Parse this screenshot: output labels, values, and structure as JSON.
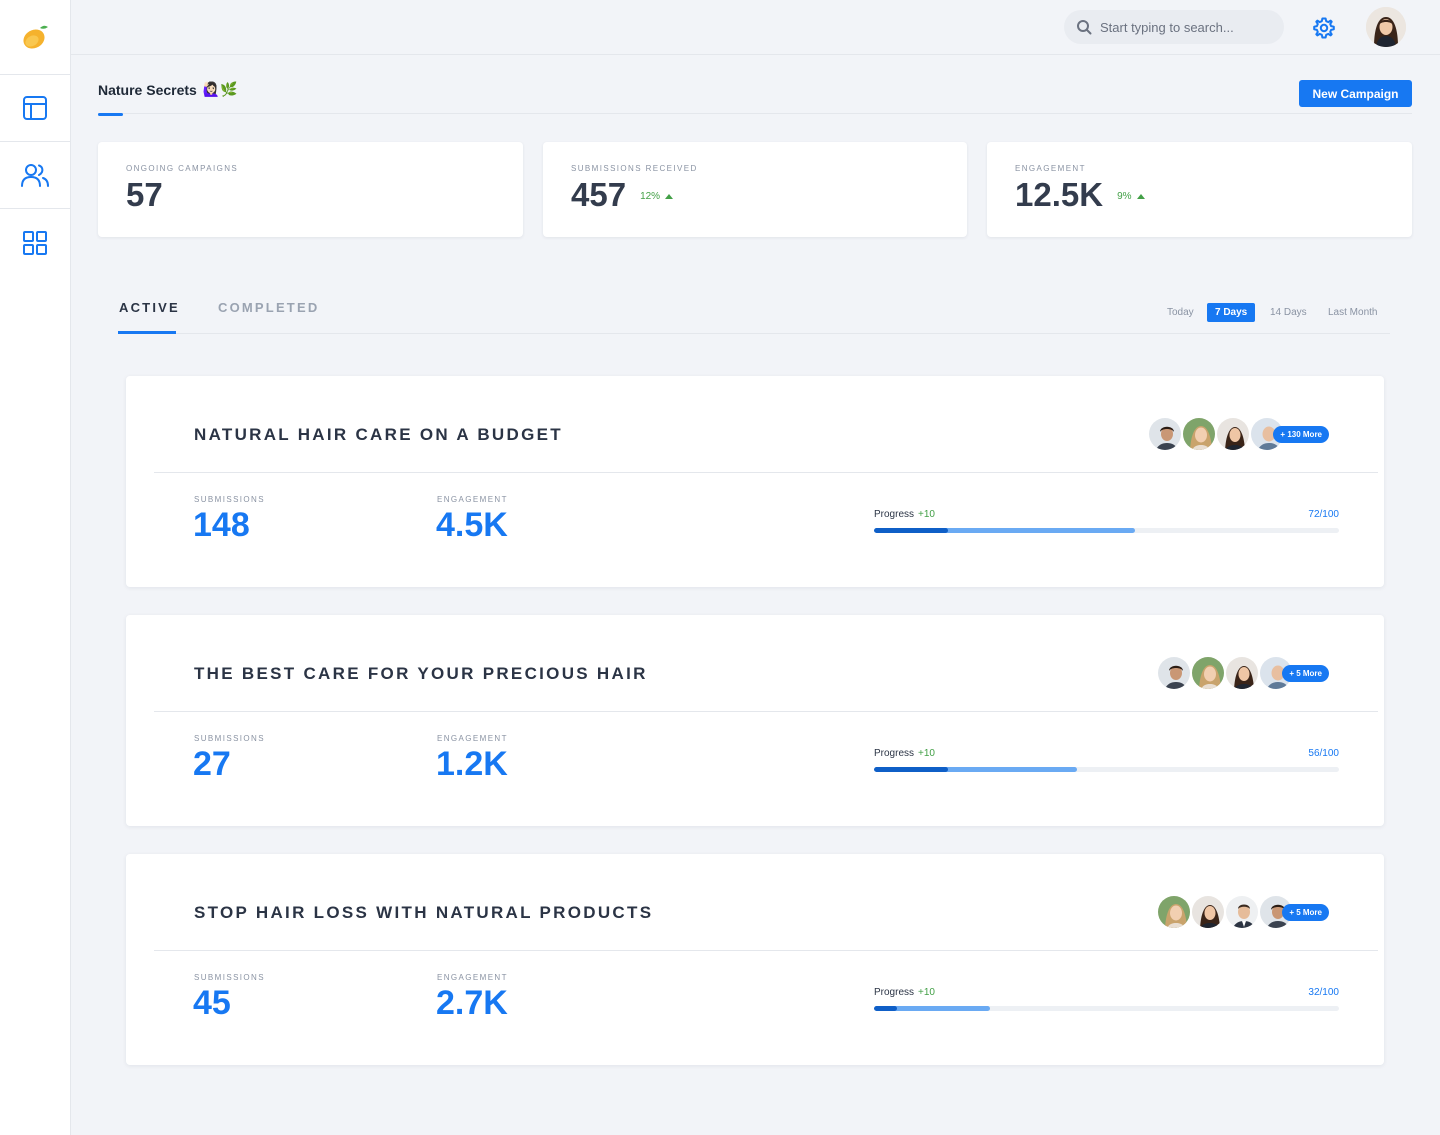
{
  "sidebar": {
    "logo_icon": "mango-logo-icon",
    "items": [
      {
        "icon": "layout-icon",
        "name": "layout"
      },
      {
        "icon": "users-icon",
        "name": "users"
      },
      {
        "icon": "grid-icon",
        "name": "apps"
      }
    ]
  },
  "header": {
    "search_placeholder": "Start typing to search...",
    "settings_icon": "gear-icon",
    "accent": "#1778f2"
  },
  "brand": {
    "title": "Nature Secrets",
    "emoji": "🙋🏻‍♀️🌿"
  },
  "actions": {
    "new_campaign": "New Campaign"
  },
  "stats": [
    {
      "label": "ONGOING CAMPAIGNS",
      "value": "57",
      "delta": ""
    },
    {
      "label": "SUBMISSIONS RECEIVED",
      "value": "457",
      "delta": "12%"
    },
    {
      "label": "ENGAGEMENT",
      "value": "12.5K",
      "delta": "9%"
    }
  ],
  "tabs": {
    "active": "ACTIVE",
    "completed": "COMPLETED"
  },
  "ranges": [
    "Today",
    "7 Days",
    "14 Days",
    "Last Month"
  ],
  "selected_range": "7 Days",
  "campaigns": [
    {
      "title": "NATURAL HAIR CARE ON A BUDGET",
      "submissions_label": "SUBMISSIONS",
      "submissions": "148",
      "engagement_label": "ENGAGEMENT",
      "engagement": "4.5K",
      "progress_label": "Progress",
      "progress_delta": "+10",
      "progress_count": "72/100",
      "progress_value": 72,
      "progress_recent": 16,
      "more": "+ 130 More"
    },
    {
      "title": "THE BEST CARE FOR YOUR PRECIOUS HAIR",
      "submissions_label": "SUBMISSIONS",
      "submissions": "27",
      "engagement_label": "ENGAGEMENT",
      "engagement": "1.2K",
      "progress_label": "Progress",
      "progress_delta": "+10",
      "progress_count": "56/100",
      "progress_value": 56,
      "progress_recent": 16,
      "more": "+ 5 More"
    },
    {
      "title": "STOP HAIR LOSS WITH NATURAL PRODUCTS",
      "submissions_label": "SUBMISSIONS",
      "submissions": "45",
      "engagement_label": "ENGAGEMENT",
      "engagement": "2.7K",
      "progress_label": "Progress",
      "progress_delta": "+10",
      "progress_count": "32/100",
      "progress_value": 32,
      "progress_recent": 5,
      "more": "+ 5 More"
    }
  ]
}
